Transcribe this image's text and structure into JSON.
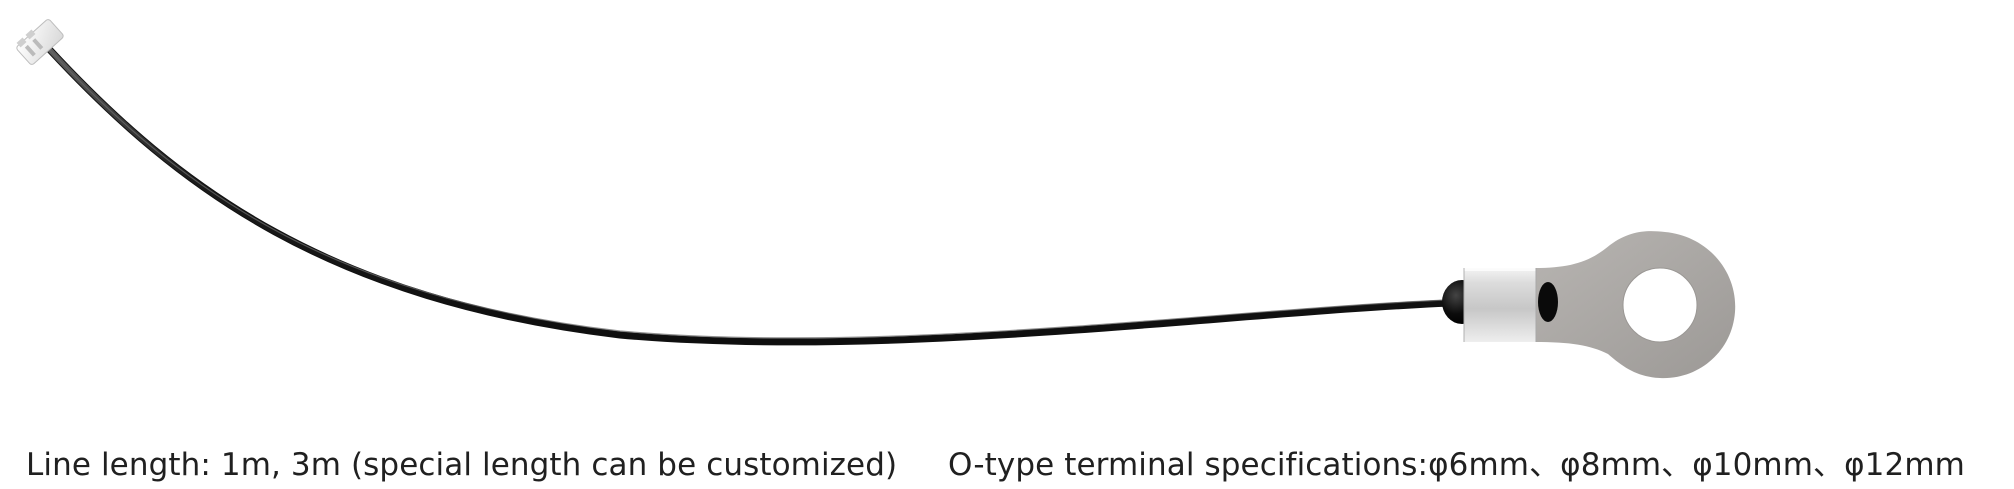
{
  "captions": {
    "line_length": "Line length: 1m, 3m (special length can be customized)",
    "terminal_specs": "O-type terminal specifications:φ6mm、φ8mm、φ10mm、φ12mm"
  },
  "colors": {
    "cable": "#1d1d1d",
    "sleeve": "#c9c9c9",
    "terminal": "#a7a4a1",
    "bead": "#050505"
  }
}
